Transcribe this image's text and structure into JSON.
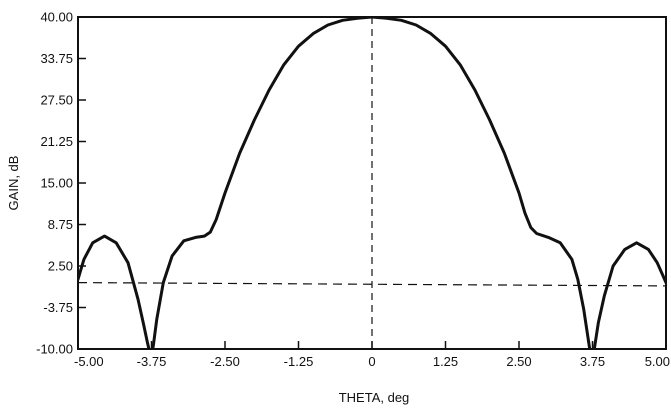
{
  "chart_data": {
    "type": "line",
    "title": "",
    "xlabel": "THETA, deg",
    "ylabel": "GAIN, dB",
    "xlim": [
      -5.0,
      5.0
    ],
    "ylim": [
      -10.0,
      40.0
    ],
    "x_ticks": [
      "-5.00",
      "-3.75",
      "-2.50",
      "-1.25",
      "0",
      "1.25",
      "2.50",
      "3.75",
      "5.00"
    ],
    "y_ticks": [
      "40.00",
      "33.75",
      "27.50",
      "21.25",
      "15.00",
      "8.75",
      "2.50",
      "-3.75",
      "-10.00"
    ],
    "grid": false,
    "colors": {
      "line": "#111111",
      "axis": "#111111"
    },
    "series": [
      {
        "x": [
          -5.0,
          -4.9,
          -4.75,
          -4.55,
          -4.35,
          -4.15,
          -3.98,
          -3.88,
          -3.82,
          -3.78,
          -3.75,
          -3.72,
          -3.66,
          -3.55,
          -3.4,
          -3.2,
          -3.0,
          -2.85,
          -2.75,
          -2.65,
          -2.5,
          -2.25,
          -2.0,
          -1.75,
          -1.5,
          -1.25,
          -1.0,
          -0.75,
          -0.5,
          -0.25,
          0.0,
          0.25,
          0.5,
          0.75,
          1.0,
          1.25,
          1.5,
          1.75,
          2.0,
          2.25,
          2.5,
          2.6,
          2.7,
          2.8,
          3.0,
          3.2,
          3.4,
          3.5,
          3.6,
          3.66,
          3.72,
          3.78,
          3.85,
          3.95,
          4.1,
          4.3,
          4.5,
          4.7,
          4.85,
          4.95,
          5.0
        ],
        "y": [
          0.5,
          3.5,
          6.0,
          7.0,
          6.0,
          3.0,
          -2.5,
          -6.5,
          -9.0,
          -10.5,
          -11.0,
          -9.5,
          -5.5,
          0.0,
          4.0,
          6.3,
          6.8,
          7.0,
          7.6,
          9.5,
          13.5,
          19.5,
          24.5,
          29.0,
          32.8,
          35.6,
          37.5,
          38.8,
          39.5,
          39.8,
          40.0,
          39.8,
          39.5,
          38.8,
          37.5,
          35.6,
          32.8,
          29.0,
          24.5,
          19.5,
          13.5,
          10.5,
          8.3,
          7.4,
          6.8,
          6.0,
          3.5,
          0.5,
          -4.0,
          -7.5,
          -11.0,
          -10.0,
          -6.0,
          -2.0,
          2.5,
          5.0,
          6.0,
          5.0,
          3.0,
          1.0,
          0.0
        ]
      }
    ],
    "reference_lines": [
      {
        "orientation": "vertical",
        "x": 0.0
      },
      {
        "orientation": "sloped",
        "x": [
          -5.0,
          5.0
        ],
        "y": [
          0.0,
          -0.5
        ]
      }
    ]
  }
}
